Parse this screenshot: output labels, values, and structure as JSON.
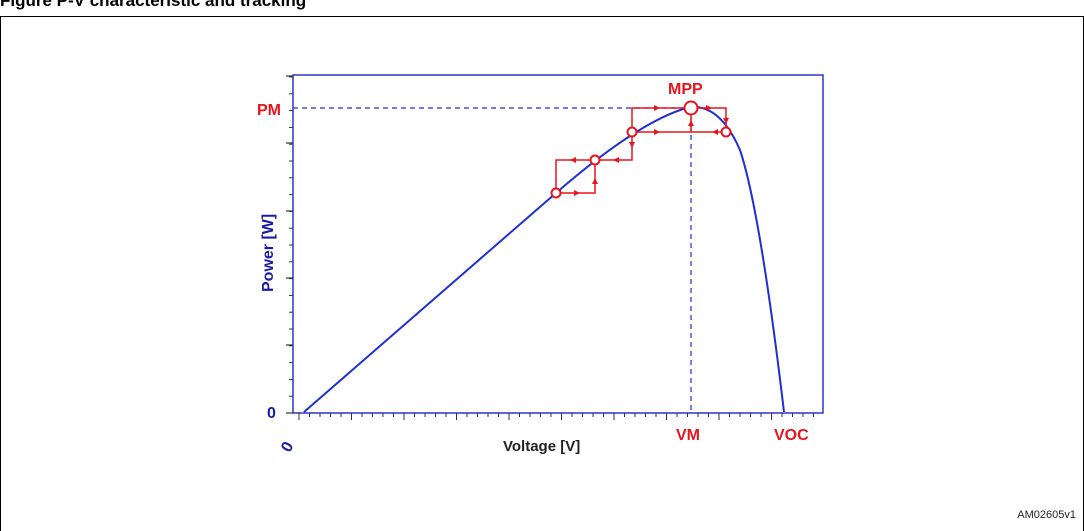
{
  "caption": "Figure    P-V characteristic and tracking",
  "labels": {
    "y_axis": "Power [W]",
    "x_axis": "Voltage [V]",
    "pm": "PM",
    "mpp": "MPP",
    "vm": "VM",
    "voc": "VOC",
    "y_zero": "0",
    "x_zero": "0"
  },
  "reference": "AM02605v1",
  "colors": {
    "curve": "#1f2fd6",
    "axis_text": "#1a1aa6",
    "tracking": "#e8141c",
    "frame": "#2a36c9"
  }
}
